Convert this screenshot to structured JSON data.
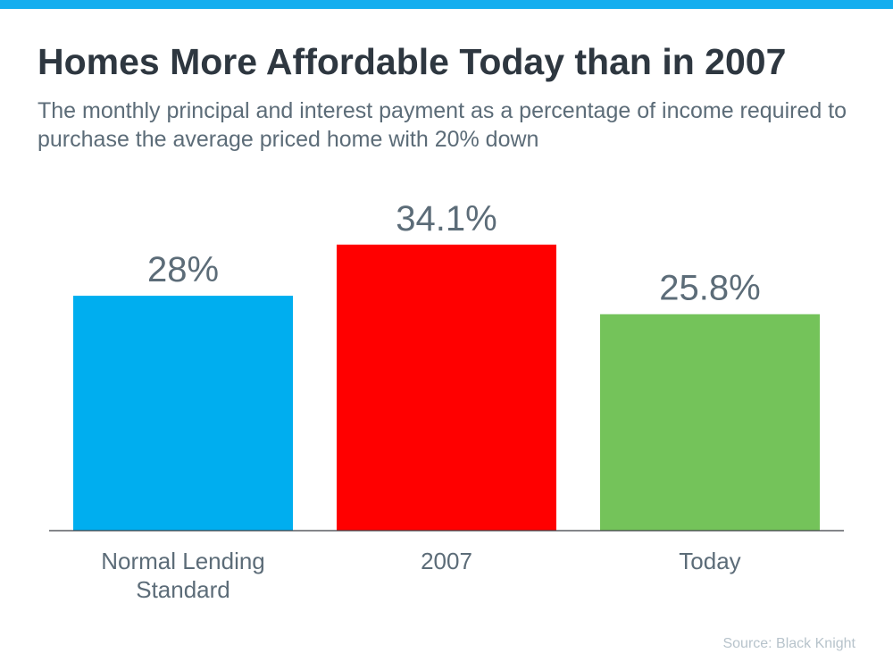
{
  "title": "Homes More Affordable Today than in 2007",
  "subtitle": "The monthly principal and interest payment as a percentage of income required to purchase the average priced home with 20% down",
  "source": "Source: Black Knight",
  "colors": {
    "top_bar": "#14aeef",
    "title": "#2e3740",
    "text": "#5c6c78"
  },
  "chart_data": {
    "type": "bar",
    "categories": [
      [
        "Normal Lending",
        "Standard"
      ],
      [
        "2007"
      ],
      [
        "Today"
      ]
    ],
    "values": [
      28,
      34.1,
      25.8
    ],
    "data_labels": [
      "28%",
      "34.1%",
      "25.8%"
    ],
    "colors": [
      "#00aeef",
      "#ff0000",
      "#74c35a"
    ],
    "ylim": [
      0,
      34.1
    ],
    "grid": false,
    "legend": "none",
    "xlabel": "",
    "ylabel": ""
  }
}
